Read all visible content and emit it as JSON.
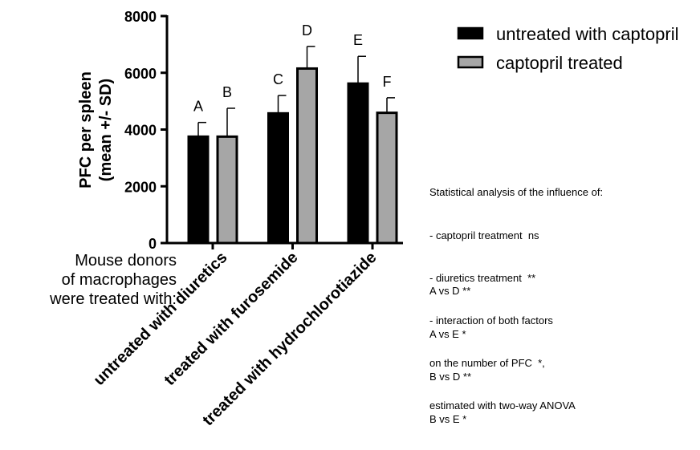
{
  "chart_data": {
    "type": "bar",
    "categories": [
      "untreated with diuretics",
      "treated with furosemide",
      "treated with hydrochlorotiazide"
    ],
    "series": [
      {
        "name": "untreated with captopril",
        "color": "#000000",
        "values": [
          3750,
          4570,
          5620
        ],
        "errors": [
          500,
          630,
          960
        ],
        "letters": [
          "A",
          "C",
          "E"
        ]
      },
      {
        "name": "captopril treated",
        "color": "#a6a6a6",
        "values": [
          3750,
          6150,
          4590
        ],
        "errors": [
          1000,
          780,
          530
        ],
        "letters": [
          "B",
          "D",
          "F"
        ]
      }
    ],
    "ylabel": [
      "PFC per spleen",
      "(mean +/- SD)"
    ],
    "ylim": [
      0,
      8000
    ],
    "yticks": [
      0,
      2000,
      4000,
      6000,
      8000
    ],
    "grid": false,
    "legend_position": "top-right"
  },
  "side_label": [
    "Mouse donors",
    "of macrophages",
    "were treated with:"
  ],
  "stats_note": [
    "Statistical analysis of the influence of:",
    "- captopril treatment  ns",
    "- diuretics treatment  **",
    "- interaction of both factors",
    "on the number of PFC  *,",
    "estimated with two-way ANOVA"
  ],
  "comparisons": [
    "A vs D **",
    "A vs E *",
    "B vs D **",
    "B vs E *"
  ]
}
